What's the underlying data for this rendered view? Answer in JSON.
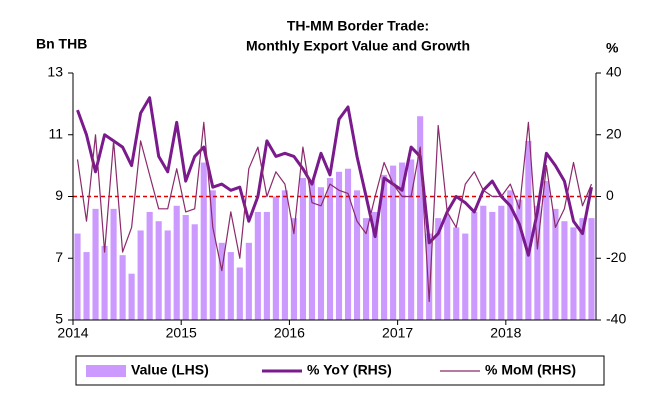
{
  "chart_data": {
    "type": "bar_line",
    "title": [
      "TH-MM Border Trade:",
      "Monthly Export Value and Growth"
    ],
    "y_label": "Bn THB",
    "y2_label": "%",
    "categories": [
      "2014",
      null,
      null,
      null,
      null,
      null,
      null,
      null,
      null,
      null,
      null,
      null,
      "2015",
      null,
      null,
      null,
      null,
      null,
      null,
      null,
      null,
      null,
      null,
      null,
      "2016",
      null,
      null,
      null,
      null,
      null,
      null,
      null,
      null,
      null,
      null,
      null,
      "2017",
      null,
      null,
      null,
      null,
      null,
      null,
      null,
      null,
      null,
      null,
      null,
      "2018",
      null,
      null,
      null,
      null,
      null,
      null,
      null,
      null,
      null
    ],
    "series": [
      {
        "name": "Value (LHS)",
        "type": "bar",
        "axis": "y",
        "color": "#cc99ff",
        "values": [
          7.8,
          7.2,
          8.6,
          7.4,
          8.6,
          7.1,
          6.5,
          7.9,
          8.5,
          8.2,
          7.9,
          8.7,
          8.4,
          8.1,
          10.1,
          9.2,
          7.5,
          7.2,
          6.7,
          7.5,
          8.5,
          8.5,
          9.0,
          9.2,
          8.3,
          9.6,
          9.5,
          9.3,
          9.6,
          9.8,
          9.9,
          9.2,
          8.3,
          8.5,
          9.7,
          10.0,
          10.1,
          10.2,
          11.6,
          7.8,
          8.3,
          8.4,
          8.0,
          7.8,
          8.5,
          8.7,
          8.5,
          8.7,
          9.2,
          8.9,
          10.8,
          8.7,
          9.5,
          8.6,
          8.2,
          8.0,
          8.3,
          8.3
        ]
      },
      {
        "name": "% YoY (RHS)",
        "type": "line",
        "axis": "y2",
        "color": "#7a1a8c",
        "width": 3,
        "values": [
          28,
          20,
          8,
          20,
          18,
          16,
          10,
          27,
          32,
          13,
          8,
          24,
          5,
          13,
          16,
          3,
          4,
          2,
          3,
          -8,
          0,
          18,
          13,
          14,
          13,
          9,
          4,
          14,
          7,
          25,
          29,
          13,
          0,
          -13,
          6,
          4,
          2,
          16,
          13,
          -15,
          -12,
          -5,
          0,
          -2,
          -5,
          2,
          5,
          0,
          -3,
          -9,
          -19,
          -5,
          14,
          10,
          5,
          -8,
          -12,
          3
        ]
      },
      {
        "name": "% MoM (RHS)",
        "type": "line",
        "axis": "y2",
        "color": "#8b2a6b",
        "width": 1.2,
        "values": [
          12,
          -8,
          20,
          -18,
          18,
          -18,
          -10,
          18,
          7,
          -4,
          -4,
          9,
          -5,
          -4,
          24,
          -10,
          -24,
          -5,
          -20,
          9,
          16,
          0,
          8,
          4,
          -12,
          16,
          -2,
          -3,
          4,
          2,
          1,
          -8,
          -12,
          0,
          11,
          4,
          0,
          0,
          16,
          -34,
          23,
          -5,
          -10,
          4,
          8,
          2,
          0,
          0,
          4,
          -4,
          24,
          -17,
          10,
          -10,
          -4,
          11,
          -3,
          4
        ]
      }
    ],
    "ylim": [
      5,
      13
    ],
    "yticks": [
      5,
      7,
      9,
      11,
      13
    ],
    "y2lim": [
      -40,
      40
    ],
    "y2ticks": [
      -40,
      -20,
      0,
      20,
      40
    ],
    "reference_lines": [
      {
        "axis": "y2",
        "value": 0,
        "color": "#e00000"
      }
    ],
    "legend": "bottom"
  }
}
